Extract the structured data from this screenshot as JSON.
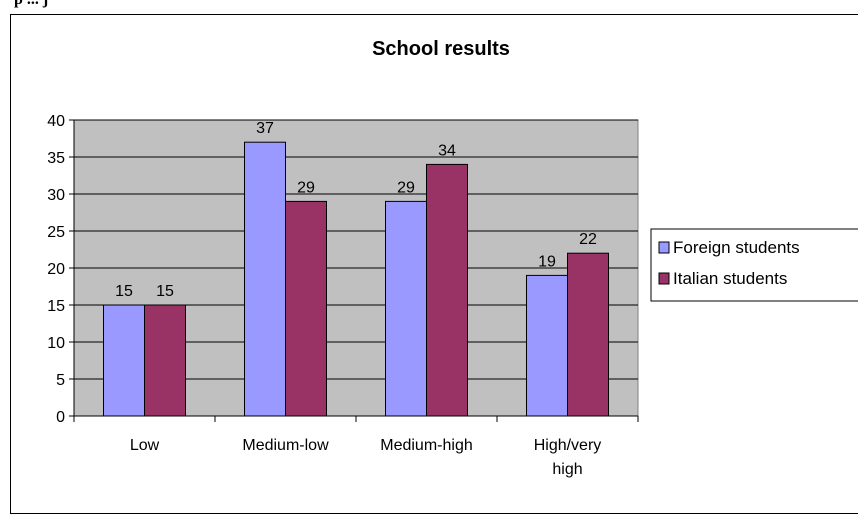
{
  "header_fragment": "p ... j",
  "chart_data": {
    "type": "bar",
    "title": "School results",
    "categories": [
      "Low",
      "Medium-low",
      "Medium-high",
      "High/very high"
    ],
    "category_lines": [
      [
        "Low"
      ],
      [
        "Medium-low"
      ],
      [
        "Medium-high"
      ],
      [
        "High/very",
        "high"
      ]
    ],
    "series": [
      {
        "name": "Foreign students",
        "values": [
          15,
          37,
          29,
          19
        ],
        "color": "#9999ff"
      },
      {
        "name": "Italian students",
        "values": [
          15,
          29,
          34,
          22
        ],
        "color": "#993366"
      }
    ],
    "ylim": [
      0,
      40
    ],
    "yticks": [
      0,
      5,
      10,
      15,
      20,
      25,
      30,
      35,
      40
    ],
    "grid": true,
    "plot_background": "#c0c0c0",
    "legend_position": "right",
    "xlabel": "",
    "ylabel": ""
  }
}
